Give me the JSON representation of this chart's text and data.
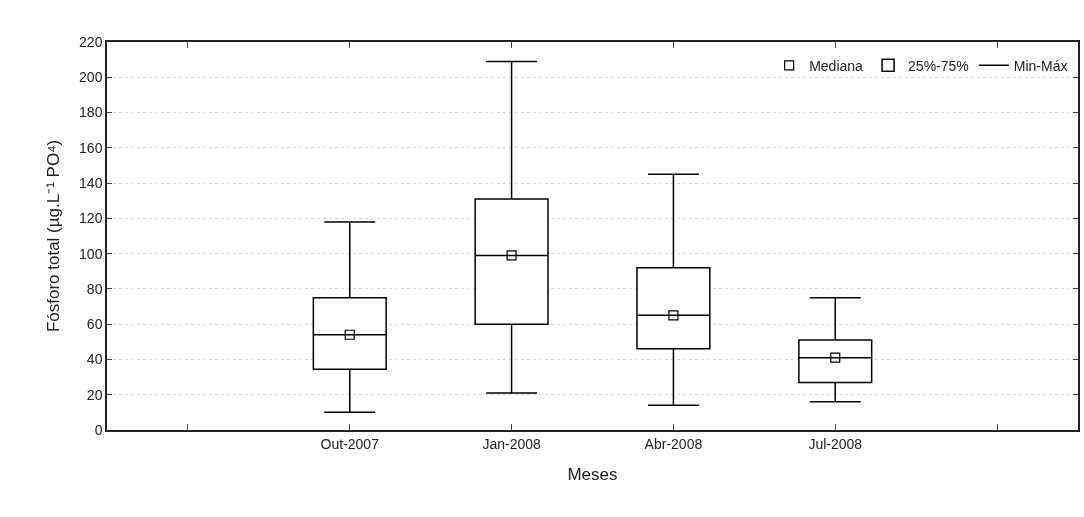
{
  "chart_data": {
    "type": "box",
    "xlabel": "Meses",
    "ylabel": "Fósforo total (µg.L⁻¹ PO⁴)",
    "categories": [
      null,
      "Out-2007",
      "Jan-2008",
      "Abr-2008",
      "Jul-2008",
      null
    ],
    "series": [
      {
        "name": "Mediana",
        "type": "scatter",
        "marker": "square",
        "color": "#000000",
        "x": [
          "Out-2007",
          "Jan-2008",
          "Abr-2008",
          "Jul-2008"
        ],
        "values": [
          54,
          99,
          65,
          41
        ]
      },
      {
        "name": "25%-75%",
        "color": "#000000",
        "boxes": [
          null,
          {
            "low": 10,
            "q1": 34.5,
            "median": 54,
            "q3": 75,
            "high": 118
          },
          {
            "low": 21,
            "q1": 60,
            "median": 99,
            "q3": 131,
            "high": 209
          },
          {
            "low": 14,
            "q1": 46,
            "median": 65,
            "q3": 92,
            "high": 145
          },
          {
            "low": 16,
            "q1": 27,
            "median": 41,
            "q3": 51,
            "high": 75
          },
          null
        ]
      },
      {
        "name": "Min-Máx",
        "type": "line",
        "color": "#000000",
        "values": [
          null,
          null,
          null,
          null,
          null,
          null
        ]
      }
    ],
    "ylim": [
      0,
      220
    ],
    "yticks": [
      0,
      20,
      40,
      60,
      80,
      100,
      120,
      140,
      160,
      180,
      200,
      220
    ],
    "grid": "y",
    "legend": "top right"
  }
}
